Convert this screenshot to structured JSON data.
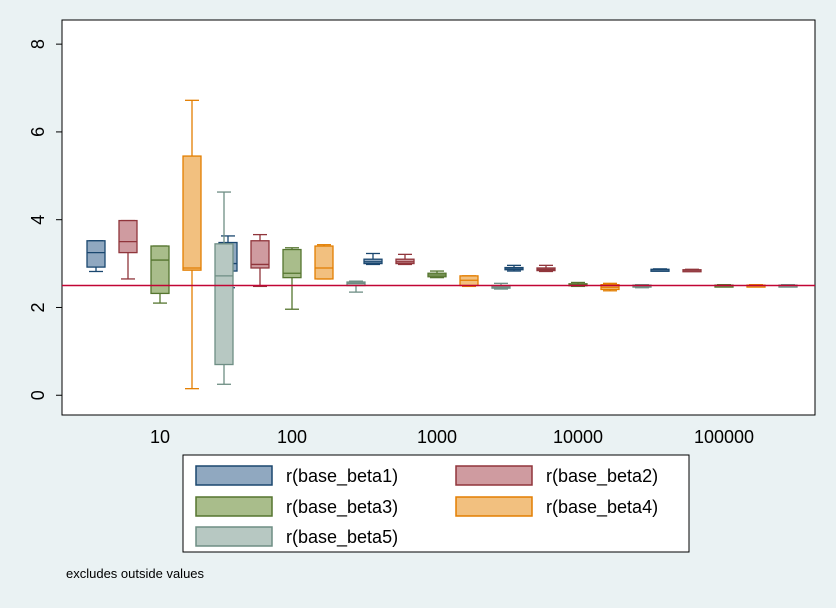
{
  "chart_data": {
    "type": "box",
    "y_ticks": [
      0,
      2,
      4,
      6,
      8
    ],
    "ylim": [
      -0.45,
      8.55
    ],
    "groups": [
      "10",
      "100",
      "1000",
      "10000",
      "100000"
    ],
    "series": [
      {
        "name": "r(base_beta1)",
        "fill": "#90a8c0",
        "stroke": "#1a476f",
        "boxes": [
          {
            "min": 2.82,
            "q1": 2.92,
            "median": 3.25,
            "q3": 3.52,
            "max": 3.52
          },
          {
            "min": 2.45,
            "q1": 2.83,
            "median": 3.0,
            "q3": 3.48,
            "max": 3.63
          },
          {
            "min": 2.98,
            "q1": 3.0,
            "median": 3.04,
            "q3": 3.1,
            "max": 3.23
          },
          {
            "min": 2.83,
            "q1": 2.86,
            "median": 2.88,
            "q3": 2.91,
            "max": 2.96
          },
          {
            "min": 2.84,
            "q1": 2.85,
            "median": 2.86,
            "q3": 2.87,
            "max": 2.88
          }
        ]
      },
      {
        "name": "r(base_beta2)",
        "fill": "#cf9ba0",
        "stroke": "#90353b",
        "boxes": [
          {
            "min": 2.65,
            "q1": 3.25,
            "median": 3.5,
            "q3": 3.98,
            "max": 3.98
          },
          {
            "min": 2.48,
            "q1": 2.9,
            "median": 2.98,
            "q3": 3.52,
            "max": 3.66
          },
          {
            "min": 2.98,
            "q1": 3.0,
            "median": 3.04,
            "q3": 3.1,
            "max": 3.21
          },
          {
            "min": 2.82,
            "q1": 2.84,
            "median": 2.87,
            "q3": 2.9,
            "max": 2.96
          },
          {
            "min": 2.83,
            "q1": 2.84,
            "median": 2.85,
            "q3": 2.86,
            "max": 2.87
          }
        ]
      },
      {
        "name": "r(base_beta3)",
        "fill": "#a9bd8b",
        "stroke": "#55752f",
        "boxes": [
          {
            "min": 2.1,
            "q1": 2.32,
            "median": 3.08,
            "q3": 3.4,
            "max": 3.4
          },
          {
            "min": 1.96,
            "q1": 2.68,
            "median": 2.78,
            "q3": 3.32,
            "max": 3.36
          },
          {
            "min": 2.68,
            "q1": 2.7,
            "median": 2.74,
            "q3": 2.78,
            "max": 2.83
          },
          {
            "min": 2.48,
            "q1": 2.5,
            "median": 2.52,
            "q3": 2.54,
            "max": 2.57
          },
          {
            "min": 2.48,
            "q1": 2.49,
            "median": 2.5,
            "q3": 2.51,
            "max": 2.52
          }
        ]
      },
      {
        "name": "r(base_beta4)",
        "fill": "#f2c07f",
        "stroke": "#e37e00",
        "boxes": [
          {
            "min": 0.15,
            "q1": 2.85,
            "median": 2.9,
            "q3": 5.45,
            "max": 6.72
          },
          {
            "min": 2.65,
            "q1": 2.65,
            "median": 2.9,
            "q3": 3.4,
            "max": 3.43
          },
          {
            "min": 2.48,
            "q1": 2.5,
            "median": 2.62,
            "q3": 2.72,
            "max": 2.72
          },
          {
            "min": 2.38,
            "q1": 2.41,
            "median": 2.46,
            "q3": 2.52,
            "max": 2.55
          },
          {
            "min": 2.48,
            "q1": 2.49,
            "median": 2.5,
            "q3": 2.51,
            "max": 2.52
          }
        ]
      },
      {
        "name": "r(base_beta5)",
        "fill": "#b7c8c2",
        "stroke": "#6e8e84",
        "boxes": [
          {
            "min": 0.25,
            "q1": 0.7,
            "median": 2.72,
            "q3": 3.45,
            "max": 4.63
          },
          {
            "min": 2.35,
            "q1": 2.5,
            "median": 2.55,
            "q3": 2.58,
            "max": 2.6
          },
          {
            "min": 2.42,
            "q1": 2.44,
            "median": 2.47,
            "q3": 2.5,
            "max": 2.55
          },
          {
            "min": 2.45,
            "q1": 2.47,
            "median": 2.49,
            "q3": 2.51,
            "max": 2.52
          },
          {
            "min": 2.48,
            "q1": 2.49,
            "median": 2.5,
            "q3": 2.51,
            "max": 2.52
          }
        ]
      }
    ],
    "reference_line": {
      "y": 2.5,
      "color": "#c10534"
    },
    "legend_position": "bottom",
    "note": "excludes outside values"
  }
}
